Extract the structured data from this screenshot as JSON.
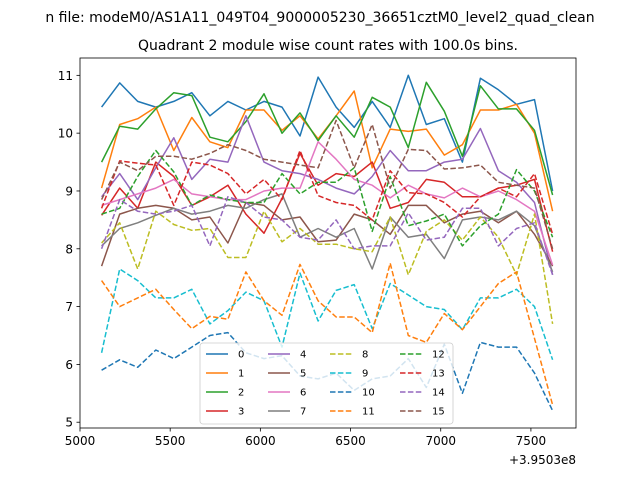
{
  "chart_data": {
    "type": "line",
    "suptitle": "n file: modeM0/AS1A11_049T04_9000005230_36651cztM0_level2_quad_clean",
    "title": "Quadrant 2 module wise count rates with 100.0s bins.",
    "xlabel": "",
    "ylabel": "",
    "x_offset_label": "+3.9503e8",
    "xlim": [
      5000,
      7750
    ],
    "ylim": [
      4.9,
      11.3
    ],
    "xticks": [
      5000,
      5500,
      6000,
      6500,
      7000,
      7500
    ],
    "xtick_labels": [
      "5000",
      "5500",
      "6000",
      "6500",
      "7000",
      "7500"
    ],
    "yticks": [
      5,
      6,
      7,
      8,
      9,
      10,
      11
    ],
    "ytick_labels": [
      "5",
      "6",
      "7",
      "8",
      "9",
      "10",
      "11"
    ],
    "grid": false,
    "legend_position": "lower center",
    "x": [
      5120,
      5220,
      5320,
      5420,
      5520,
      5620,
      5720,
      5820,
      5920,
      6020,
      6120,
      6220,
      6320,
      6420,
      6520,
      6620,
      6720,
      6820,
      6920,
      7020,
      7120,
      7220,
      7320,
      7420,
      7520,
      7620
    ],
    "series": [
      {
        "name": "0",
        "color": "#1f77b4",
        "style": "solid",
        "values": [
          10.45,
          10.87,
          10.55,
          10.45,
          10.55,
          10.7,
          10.3,
          10.55,
          10.4,
          10.55,
          10.45,
          9.95,
          10.97,
          10.45,
          10.1,
          10.55,
          10.1,
          11.0,
          10.15,
          10.25,
          9.5,
          10.95,
          10.75,
          10.5,
          10.58,
          9.0
        ]
      },
      {
        "name": "1",
        "color": "#ff7f0e",
        "style": "solid",
        "values": [
          9.05,
          10.15,
          10.25,
          10.45,
          9.7,
          10.27,
          9.85,
          9.75,
          10.4,
          10.4,
          10.05,
          10.3,
          9.9,
          10.3,
          10.73,
          9.4,
          10.07,
          10.03,
          10.07,
          9.62,
          9.8,
          10.4,
          10.4,
          10.5,
          10.0,
          8.65
        ]
      },
      {
        "name": "2",
        "color": "#2ca02c",
        "style": "solid",
        "values": [
          9.5,
          10.12,
          10.07,
          10.42,
          10.7,
          10.65,
          9.93,
          9.85,
          10.2,
          10.68,
          10.0,
          10.35,
          9.87,
          10.3,
          9.93,
          10.62,
          10.45,
          9.75,
          10.88,
          10.38,
          9.6,
          10.82,
          10.42,
          10.42,
          10.05,
          8.93
        ]
      },
      {
        "name": "3",
        "color": "#d62728",
        "style": "solid",
        "values": [
          8.58,
          9.05,
          8.7,
          9.5,
          9.25,
          8.75,
          8.9,
          9.1,
          8.6,
          8.27,
          8.87,
          9.65,
          9.1,
          9.3,
          9.25,
          9.5,
          8.7,
          8.8,
          9.2,
          9.15,
          8.9,
          8.9,
          9.05,
          9.1,
          9.2,
          7.95
        ]
      },
      {
        "name": "4",
        "color": "#9467bd",
        "style": "solid",
        "values": [
          8.9,
          9.3,
          8.85,
          9.4,
          9.92,
          9.2,
          9.55,
          9.5,
          10.3,
          9.5,
          9.35,
          9.3,
          9.2,
          9.05,
          8.95,
          9.25,
          9.7,
          9.35,
          9.35,
          9.5,
          9.55,
          10.08,
          9.35,
          9.15,
          8.8,
          7.55
        ]
      },
      {
        "name": "5",
        "color": "#8c564b",
        "style": "solid",
        "values": [
          7.7,
          8.6,
          8.7,
          8.75,
          8.7,
          8.5,
          8.55,
          8.1,
          8.8,
          8.75,
          8.5,
          8.55,
          8.12,
          8.15,
          8.6,
          8.5,
          8.25,
          8.75,
          8.75,
          8.45,
          8.6,
          8.65,
          8.45,
          8.65,
          8.25,
          7.7
        ]
      },
      {
        "name": "6",
        "color": "#e377c2",
        "style": "solid",
        "values": [
          8.75,
          8.85,
          8.95,
          9.05,
          9.2,
          8.95,
          8.9,
          8.85,
          8.85,
          9.0,
          9.05,
          9.05,
          9.85,
          9.55,
          9.2,
          9.1,
          8.88,
          9.1,
          8.95,
          8.88,
          9.05,
          8.9,
          9.0,
          8.85,
          8.65,
          7.72
        ]
      },
      {
        "name": "7",
        "color": "#7f7f7f",
        "style": "solid",
        "values": [
          8.05,
          8.35,
          8.45,
          8.58,
          8.7,
          8.6,
          8.65,
          8.75,
          8.7,
          8.85,
          8.95,
          8.2,
          8.35,
          8.2,
          8.35,
          7.65,
          8.55,
          8.2,
          8.25,
          7.83,
          8.5,
          8.55,
          8.5,
          8.65,
          8.4,
          7.6
        ]
      },
      {
        "name": "8",
        "color": "#bcbd22",
        "style": "dashed",
        "values": [
          8.1,
          8.45,
          7.65,
          8.65,
          8.42,
          8.32,
          8.35,
          7.85,
          7.85,
          8.65,
          8.12,
          8.35,
          8.08,
          8.08,
          8.0,
          7.95,
          8.55,
          7.55,
          8.3,
          8.5,
          8.15,
          8.55,
          8.2,
          7.55,
          8.6,
          6.7
        ]
      },
      {
        "name": "9",
        "color": "#17becf",
        "style": "dashed",
        "values": [
          6.2,
          7.65,
          7.45,
          7.15,
          7.15,
          7.3,
          6.7,
          6.93,
          7.25,
          7.1,
          6.3,
          7.58,
          6.75,
          7.28,
          7.38,
          6.62,
          7.4,
          7.2,
          7.0,
          6.95,
          6.6,
          7.15,
          7.15,
          7.3,
          7.0,
          6.08
        ]
      },
      {
        "name": "10",
        "color": "#1f77b4",
        "style": "dashed",
        "values": [
          5.9,
          6.08,
          5.95,
          6.25,
          6.1,
          6.3,
          6.5,
          6.55,
          6.2,
          6.1,
          6.15,
          5.8,
          5.75,
          5.85,
          5.55,
          5.75,
          5.8,
          6.1,
          5.6,
          6.35,
          5.5,
          6.38,
          6.3,
          6.3,
          5.85,
          5.2
        ]
      },
      {
        "name": "11",
        "color": "#ff7f0e",
        "style": "dashed",
        "values": [
          7.45,
          7.0,
          7.15,
          7.3,
          6.95,
          6.62,
          6.83,
          6.78,
          7.6,
          7.1,
          6.85,
          7.73,
          7.1,
          6.82,
          6.82,
          6.55,
          7.75,
          6.5,
          6.38,
          6.88,
          6.6,
          7.0,
          7.4,
          7.6,
          6.45,
          5.3
        ]
      },
      {
        "name": "12",
        "color": "#2ca02c",
        "style": "dashed",
        "values": [
          8.6,
          8.7,
          9.25,
          9.7,
          9.33,
          8.75,
          8.93,
          8.85,
          8.8,
          8.8,
          9.3,
          8.95,
          9.15,
          9.15,
          9.4,
          8.3,
          9.25,
          8.4,
          8.48,
          8.6,
          8.05,
          8.4,
          8.6,
          9.37,
          9.0,
          8.2
        ]
      },
      {
        "name": "13",
        "color": "#d62728",
        "style": "dashed",
        "values": [
          8.7,
          9.52,
          9.48,
          9.45,
          8.75,
          9.5,
          9.45,
          9.3,
          8.95,
          9.2,
          8.85,
          9.7,
          8.92,
          8.8,
          8.75,
          8.5,
          9.35,
          8.97,
          8.95,
          8.8,
          8.55,
          8.9,
          9.05,
          8.9,
          9.3,
          8.25
        ]
      },
      {
        "name": "14",
        "color": "#9467bd",
        "style": "dashed",
        "values": [
          8.0,
          8.85,
          8.65,
          8.6,
          8.65,
          8.75,
          8.05,
          8.9,
          8.8,
          8.55,
          8.5,
          8.2,
          8.15,
          8.5,
          8.0,
          8.05,
          8.05,
          8.62,
          8.15,
          8.2,
          8.7,
          8.7,
          8.05,
          8.35,
          8.45,
          7.55
        ]
      },
      {
        "name": "15",
        "color": "#8c564b",
        "style": "dashed",
        "values": [
          8.85,
          9.5,
          9.35,
          9.6,
          9.6,
          9.55,
          9.65,
          9.8,
          9.7,
          9.55,
          9.5,
          9.45,
          9.4,
          10.22,
          9.4,
          10.15,
          9.05,
          9.72,
          9.7,
          9.38,
          9.4,
          9.45,
          9.15,
          9.1,
          9.05,
          8.0
        ]
      }
    ]
  }
}
